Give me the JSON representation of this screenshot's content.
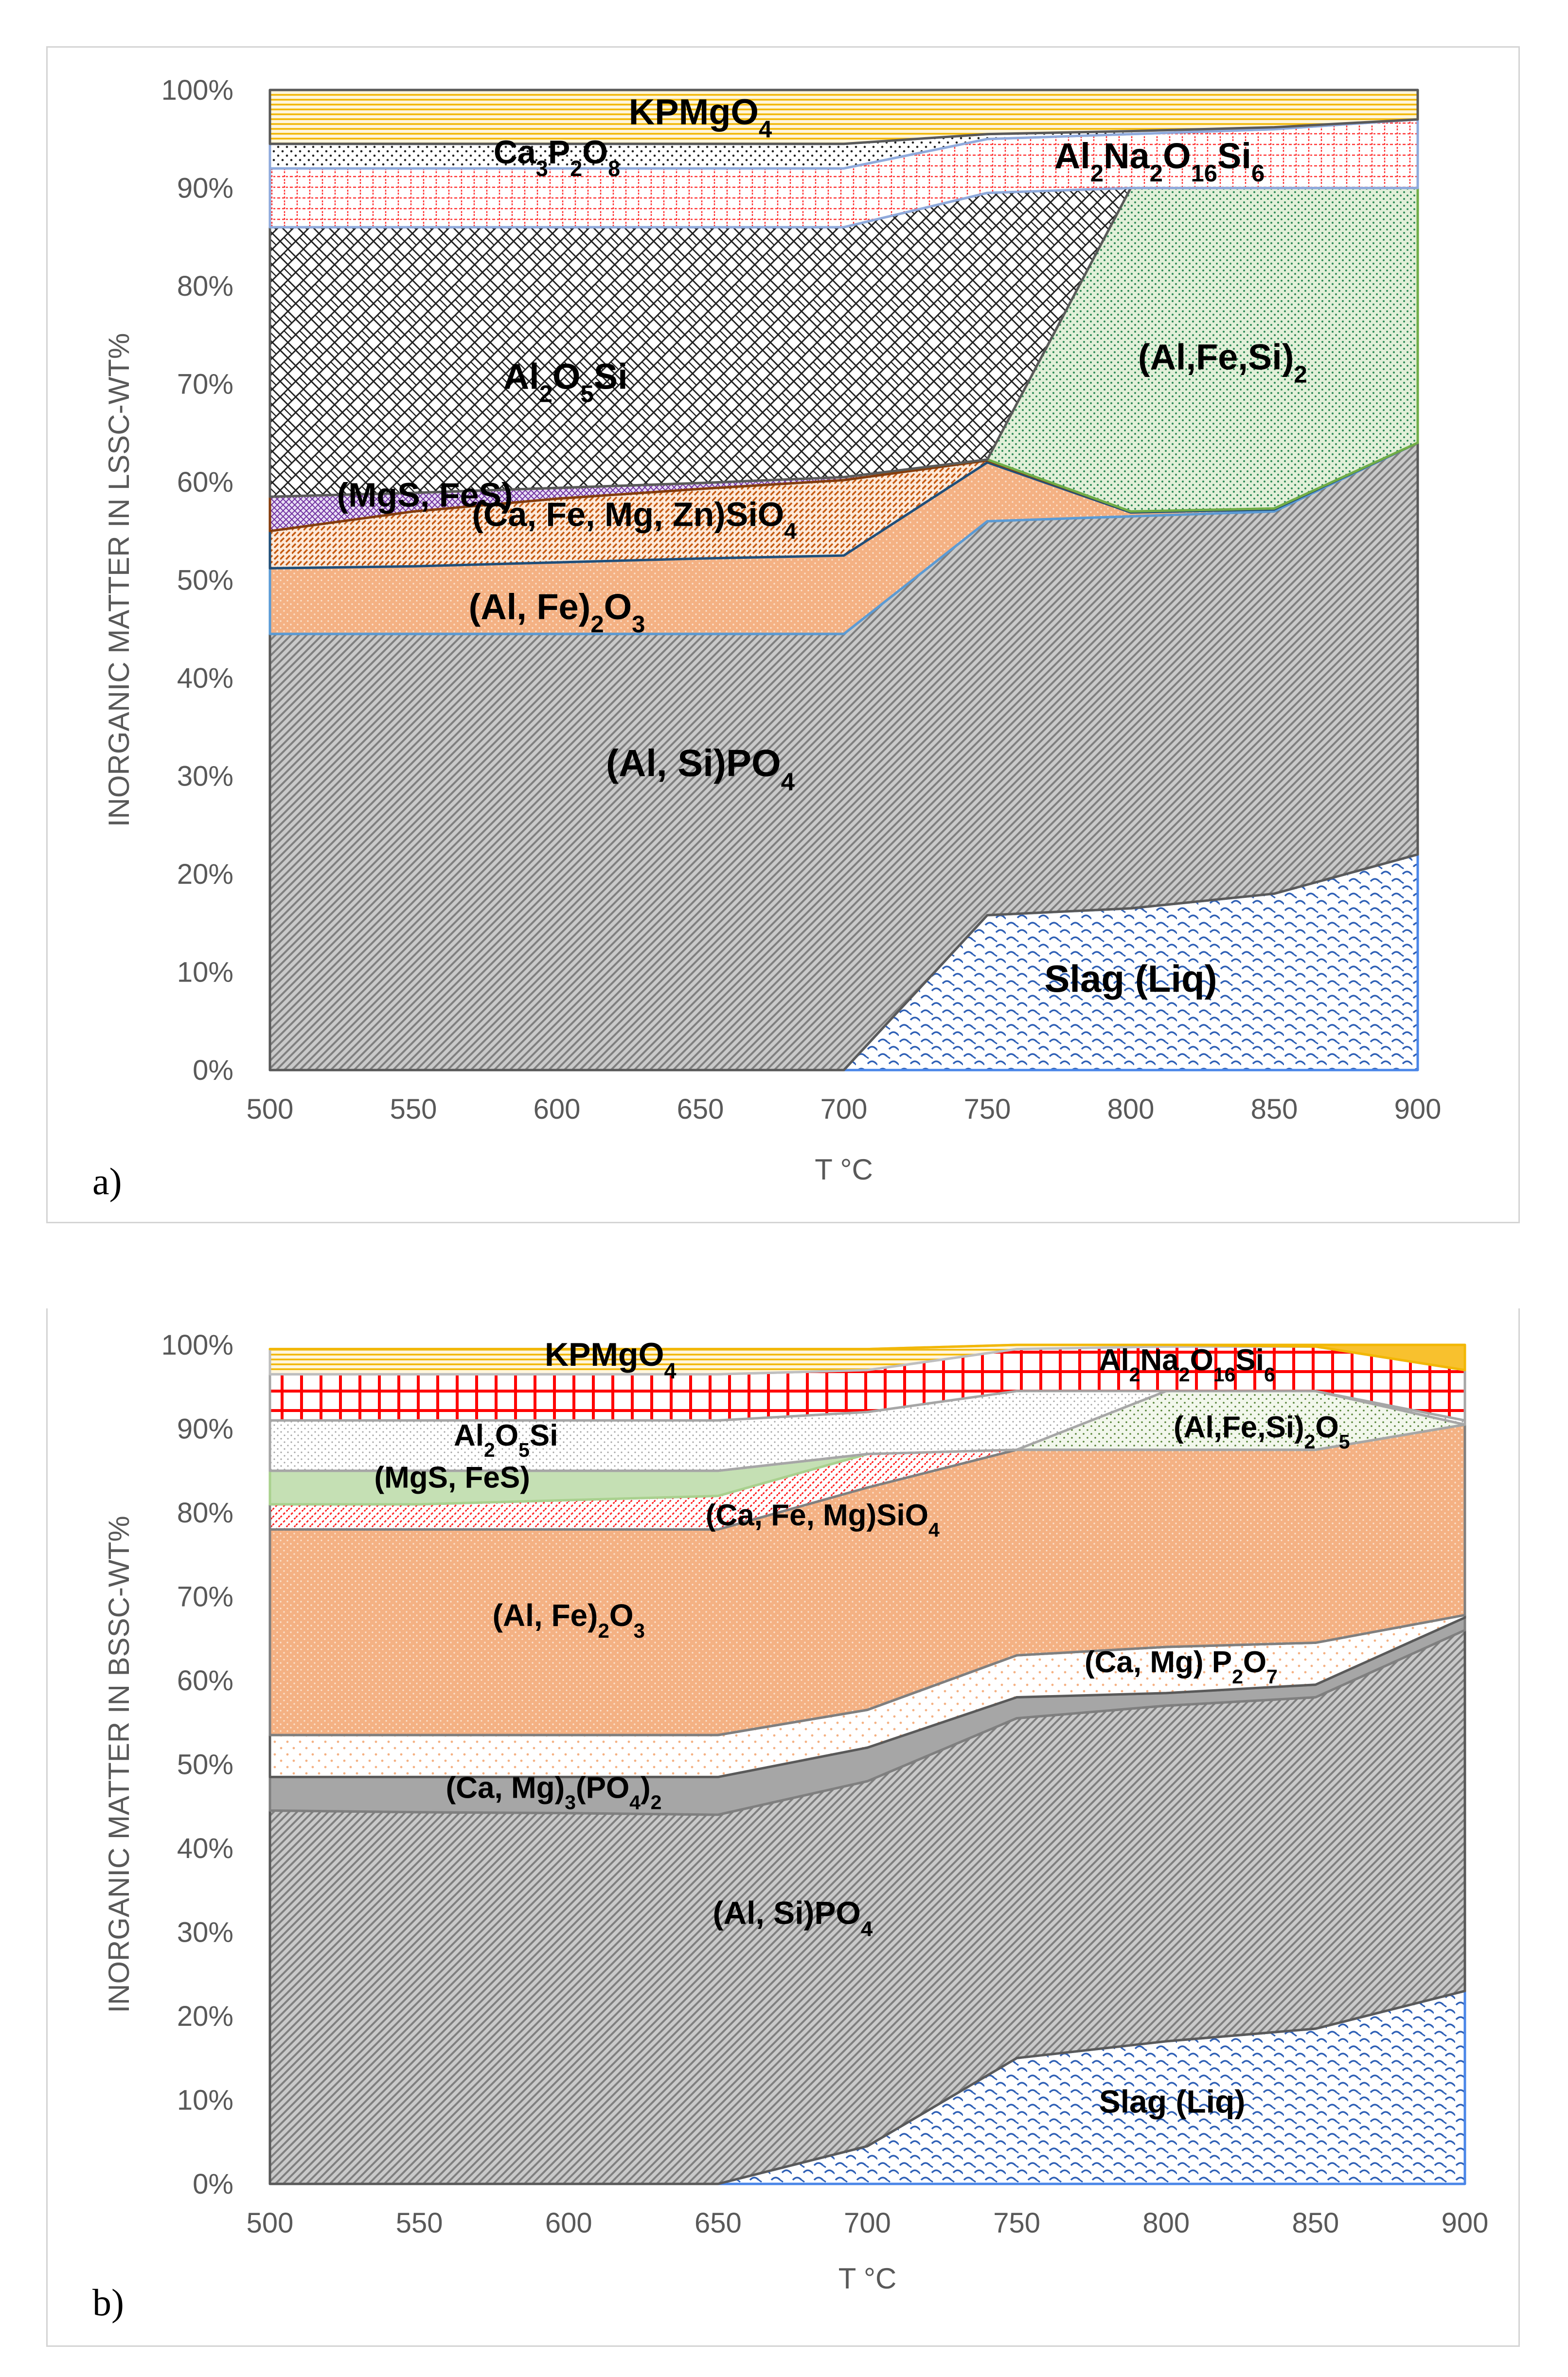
{
  "chart_data": [
    {
      "type": "area",
      "stacked": true,
      "panel_label": "a)",
      "xlabel": "T °C",
      "ylabel": "INORGANIC MATTER IN LSSC-WT%",
      "x": [
        500,
        550,
        600,
        650,
        700,
        750,
        800,
        850,
        900
      ],
      "x_ticks": [
        "500",
        "550",
        "600",
        "650",
        "700",
        "750",
        "800",
        "850",
        "900"
      ],
      "y_ticks": [
        "0%",
        "10%",
        "20%",
        "30%",
        "40%",
        "50%",
        "60%",
        "70%",
        "80%",
        "90%",
        "100%"
      ],
      "ylim": [
        0,
        100
      ],
      "layers": [
        {
          "name": "Slag (Liq)",
          "label_x": 800,
          "label_y": 8,
          "label_size": 78,
          "lower": [
            0,
            0,
            0,
            0,
            0,
            0,
            0,
            0,
            0
          ],
          "upper": [
            0,
            0,
            0,
            0,
            0,
            15.8,
            16.5,
            18,
            22
          ]
        },
        {
          "name": "(Al, Si)PO4",
          "label_x": 650,
          "label_y": 30,
          "label_size": 78,
          "lower": [
            0,
            0,
            0,
            0,
            0,
            15.8,
            16.5,
            18,
            22
          ],
          "upper": [
            44.5,
            44.5,
            44.5,
            44.5,
            44.5,
            56,
            56.5,
            57,
            64
          ]
        },
        {
          "name": "(Al, Fe)2O3",
          "label_x": 600,
          "label_y": 46,
          "label_size": 74,
          "lower": [
            44.5,
            44.5,
            44.5,
            44.5,
            44.5,
            56,
            56.5,
            57,
            64
          ],
          "upper": [
            51.2,
            51.4,
            51.8,
            52.2,
            52.5,
            62,
            56.9,
            57.2,
            64
          ]
        },
        {
          "name": "(Ca, Fe, Mg, Zn)SiO4",
          "label_x": 627,
          "label_y": 55.5,
          "label_size": 70,
          "lower": [
            51.2,
            51.4,
            51.8,
            52.2,
            52.5,
            62,
            56.9,
            57.2,
            64
          ],
          "upper": [
            55,
            57,
            58.3,
            59.3,
            60.2,
            62.2,
            57,
            57.3,
            64
          ]
        },
        {
          "name": "(MgS, FeS)",
          "label_x": 554,
          "label_y": 57.5,
          "label_size": 70,
          "lower": [
            55,
            57,
            58.3,
            59.3,
            60.2,
            62.2,
            57,
            57.3,
            64
          ],
          "upper": [
            58.5,
            58.9,
            59.4,
            59.9,
            60.5,
            62.3,
            57,
            57.3,
            64
          ]
        },
        {
          "name": "(Al,Fe,Si)2",
          "label_x": 832,
          "label_y": 71.5,
          "label_size": 74,
          "lower": [
            58.5,
            58.9,
            59.4,
            59.9,
            60.5,
            62.3,
            57,
            57.3,
            64
          ],
          "upper": [
            58.5,
            58.9,
            59.4,
            59.9,
            60.5,
            62.3,
            90,
            90,
            90
          ]
        },
        {
          "name": "Al2O5Si",
          "label_x": 603,
          "label_y": 69.5,
          "label_size": 74,
          "lower": [
            58.5,
            58.9,
            59.4,
            59.9,
            60.5,
            62.3,
            90,
            90,
            90
          ],
          "upper": [
            86,
            86,
            86,
            86,
            86,
            89.5,
            90,
            90,
            90
          ]
        },
        {
          "name": "Al2Na2O16Si6",
          "label_x": 810,
          "label_y": 92,
          "label_size": 74,
          "lower": [
            86,
            86,
            86,
            86,
            86,
            89.5,
            90,
            90,
            90
          ],
          "upper": [
            92,
            92,
            92,
            92,
            92,
            95,
            95.5,
            96,
            97
          ]
        },
        {
          "name": "Ca3P2O8",
          "label_x": 600,
          "label_y": 92.5,
          "label_size": 68,
          "lower": [
            92,
            92,
            92,
            92,
            92,
            95,
            95.5,
            96,
            97
          ],
          "upper": [
            94.5,
            94.5,
            94.5,
            94.5,
            94.5,
            95.5,
            95.8,
            96.2,
            97
          ]
        },
        {
          "name": "KPMgO4",
          "label_x": 650,
          "label_y": 96.5,
          "label_size": 74,
          "lower": [
            94.5,
            94.5,
            94.5,
            94.5,
            94.5,
            95.5,
            95.8,
            96.2,
            97
          ],
          "upper": [
            100,
            100,
            100,
            100,
            100,
            100,
            100,
            100,
            100
          ]
        }
      ]
    },
    {
      "type": "area",
      "stacked": true,
      "panel_label": "b)",
      "xlabel": "T °C",
      "ylabel": "INORGANIC MATTER IN BSSC-WT%",
      "x": [
        500,
        550,
        600,
        650,
        700,
        750,
        800,
        850,
        900
      ],
      "x_ticks": [
        "500",
        "550",
        "600",
        "650",
        "700",
        "750",
        "800",
        "850",
        "900"
      ],
      "y_ticks": [
        "0%",
        "10%",
        "20%",
        "30%",
        "40%",
        "50%",
        "60%",
        "70%",
        "80%",
        "90%",
        "100%"
      ],
      "ylim": [
        0,
        100
      ],
      "layers": [
        {
          "name": "Slag (Liq)",
          "label_x": 802,
          "label_y": 8.5,
          "label_size": 66,
          "lower": [
            0,
            0,
            0,
            0,
            0,
            0,
            0,
            0,
            0
          ],
          "upper": [
            0,
            0,
            0,
            0,
            4.5,
            15,
            17,
            18.5,
            23
          ]
        },
        {
          "name": "(Al, Si)PO4",
          "label_x": 675,
          "label_y": 31,
          "label_size": 66,
          "lower": [
            0,
            0,
            0,
            0,
            4.5,
            15,
            17,
            18.5,
            23
          ],
          "upper": [
            44.5,
            44.3,
            44.2,
            44,
            48,
            55.5,
            57,
            58,
            66
          ]
        },
        {
          "name": "(Ca, Mg)3(PO4)2",
          "label_x": 595,
          "label_y": 46,
          "label_size": 62,
          "lower": [
            44.5,
            44.3,
            44.2,
            44,
            48,
            55.5,
            57,
            58,
            66
          ],
          "upper": [
            48.5,
            48.5,
            48.5,
            48.5,
            52,
            58,
            58.5,
            59.5,
            67.5
          ]
        },
        {
          "name": "(Ca, Mg) P2O7",
          "label_x": 805,
          "label_y": 61,
          "label_size": 62,
          "lower": [
            48.5,
            48.5,
            48.5,
            48.5,
            52,
            58,
            58.5,
            59.5,
            67.5
          ],
          "upper": [
            53.5,
            53.5,
            53.5,
            53.5,
            56.5,
            63,
            64,
            64.5,
            67.8
          ]
        },
        {
          "name": "(Al, Fe)2O3",
          "label_x": 600,
          "label_y": 66.5,
          "label_size": 64,
          "lower": [
            53.5,
            53.5,
            53.5,
            53.5,
            56.5,
            63,
            64,
            64.5,
            67.8
          ],
          "upper": [
            78,
            78,
            78,
            78,
            83,
            87.5,
            87.5,
            87.5,
            90.5
          ]
        },
        {
          "name": "(Ca, Fe, Mg)SiO4",
          "label_x": 685,
          "label_y": 78.5,
          "label_size": 62,
          "lower": [
            78,
            78,
            78,
            78,
            83,
            87.5,
            87.5,
            87.5,
            90.5
          ],
          "upper": [
            81,
            81,
            81.5,
            82,
            87,
            87.5,
            87.5,
            87.5,
            90.5
          ]
        },
        {
          "name": "(MgS, FeS)",
          "label_x": 561,
          "label_y": 83,
          "label_size": 62,
          "lower": [
            81,
            81,
            81.5,
            82,
            87,
            87.5,
            87.5,
            87.5,
            90.5
          ],
          "upper": [
            85,
            85,
            85,
            85,
            87,
            87.5,
            87.5,
            87.5,
            90.5
          ]
        },
        {
          "name": "(Al,Fe,Si)2O5",
          "label_x": 832,
          "label_y": 89,
          "label_size": 62,
          "lower": [
            85,
            85,
            85,
            85,
            87,
            87.5,
            87.5,
            87.5,
            90.5
          ],
          "upper": [
            85,
            85,
            85,
            85,
            87,
            87.5,
            94.5,
            94.5,
            90.5
          ]
        },
        {
          "name": "Al2O5Si",
          "label_x": 579,
          "label_y": 88,
          "label_size": 62,
          "lower": [
            85,
            85,
            85,
            85,
            87,
            87.5,
            94.5,
            94.5,
            90.5
          ],
          "upper": [
            91,
            91,
            91,
            91,
            92,
            94.5,
            94.5,
            94.5,
            91
          ]
        },
        {
          "name": "Al2Na2O16Si6",
          "label_x": 807,
          "label_y": 97,
          "label_size": 62,
          "lower": [
            91,
            91,
            91,
            91,
            92,
            94.5,
            94.5,
            94.5,
            91
          ],
          "upper": [
            96.5,
            96.5,
            96.5,
            96.5,
            97,
            99.5,
            99.8,
            99.8,
            97
          ]
        },
        {
          "name": "KPMgO4",
          "label_x": 614,
          "label_y": 97.5,
          "label_size": 68,
          "lower": [
            96.5,
            96.5,
            96.5,
            96.5,
            97,
            99.5,
            99.8,
            99.8,
            97
          ],
          "upper": [
            99.5,
            99.5,
            99.5,
            99.5,
            99.5,
            100,
            100,
            100,
            100
          ]
        },
        {
          "name": "",
          "label_x": 0,
          "label_y": 0,
          "label_size": 0,
          "lower": [
            99.5,
            99.5,
            99.5,
            99.5,
            99.5,
            100,
            100,
            99.8,
            97
          ],
          "upper": [
            99.5,
            99.5,
            99.5,
            99.5,
            99.5,
            100,
            100,
            100,
            100
          ]
        }
      ]
    }
  ]
}
